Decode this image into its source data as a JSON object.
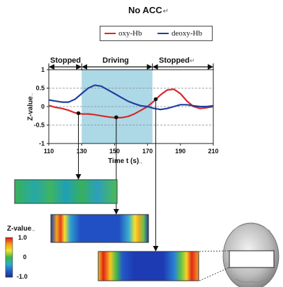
{
  "title": "No ACC",
  "title_mark": "↵",
  "legend": [
    {
      "label": "oxy-Hb",
      "color": "#d62728"
    },
    {
      "label": "deoxy-Hb",
      "color": "#1f3f9e"
    }
  ],
  "phases": [
    {
      "label": "Stopped",
      "mark": ""
    },
    {
      "label": "Driving",
      "mark": ""
    },
    {
      "label": "Stopped",
      "mark": "↵"
    }
  ],
  "colorbar": {
    "title": "Z-value",
    "mark": ".,",
    "ticks": [
      "1.0",
      "0",
      "-1.0"
    ],
    "colors": [
      "#d7191c",
      "#f4a11a",
      "#f2e62b",
      "#3bb54a",
      "#27b0c9",
      "#2b5fc4",
      "#1b2c91"
    ]
  },
  "chart_data": {
    "type": "line",
    "title": "",
    "xlabel": "Time t (s)",
    "xlabel_mark": ".,",
    "ylabel": "Z-value",
    "ylabel_mark": ".,",
    "xlim": [
      110,
      210
    ],
    "ylim": [
      -1,
      1
    ],
    "xticks": [
      110,
      130,
      150,
      170,
      190,
      210
    ],
    "yticks": [
      1,
      0.5,
      0,
      -0.5,
      -1
    ],
    "ytick_labels": [
      "1",
      "0.5",
      "0",
      "-0.5",
      "-1"
    ],
    "grid": "dashed horizontal at 0.5, 0, -0.5",
    "shaded_region": {
      "from": 130,
      "to": 173,
      "color": "#add8e6"
    },
    "phase_boundaries": [
      110,
      130,
      173,
      210
    ],
    "markers": [
      {
        "x": 128,
        "y": -0.18
      },
      {
        "x": 151,
        "y": -0.29
      },
      {
        "x": 175,
        "y": 0.2
      }
    ],
    "series": [
      {
        "name": "oxy-Hb",
        "color": "#d62728",
        "x": [
          110,
          114,
          118,
          122,
          126,
          130,
          134,
          138,
          142,
          146,
          150,
          154,
          158,
          162,
          166,
          170,
          174,
          178,
          182,
          186,
          190,
          194,
          198,
          202,
          206,
          210
        ],
        "y": [
          0.03,
          -0.02,
          -0.05,
          -0.1,
          -0.17,
          -0.2,
          -0.2,
          -0.22,
          -0.25,
          -0.28,
          -0.3,
          -0.3,
          -0.27,
          -0.2,
          -0.1,
          0.0,
          0.15,
          0.32,
          0.45,
          0.47,
          0.35,
          0.15,
          0.0,
          -0.05,
          -0.03,
          0.0
        ]
      },
      {
        "name": "deoxy-Hb",
        "color": "#1f3f9e",
        "x": [
          110,
          114,
          118,
          122,
          126,
          130,
          134,
          138,
          142,
          146,
          150,
          154,
          158,
          162,
          166,
          170,
          174,
          178,
          182,
          186,
          190,
          194,
          198,
          202,
          206,
          210
        ],
        "y": [
          0.18,
          0.15,
          0.12,
          0.12,
          0.2,
          0.35,
          0.5,
          0.58,
          0.55,
          0.45,
          0.35,
          0.25,
          0.15,
          0.08,
          0.02,
          0.0,
          -0.05,
          -0.08,
          -0.05,
          0.0,
          0.05,
          0.05,
          0.02,
          0.0,
          0.0,
          0.02
        ]
      }
    ]
  }
}
